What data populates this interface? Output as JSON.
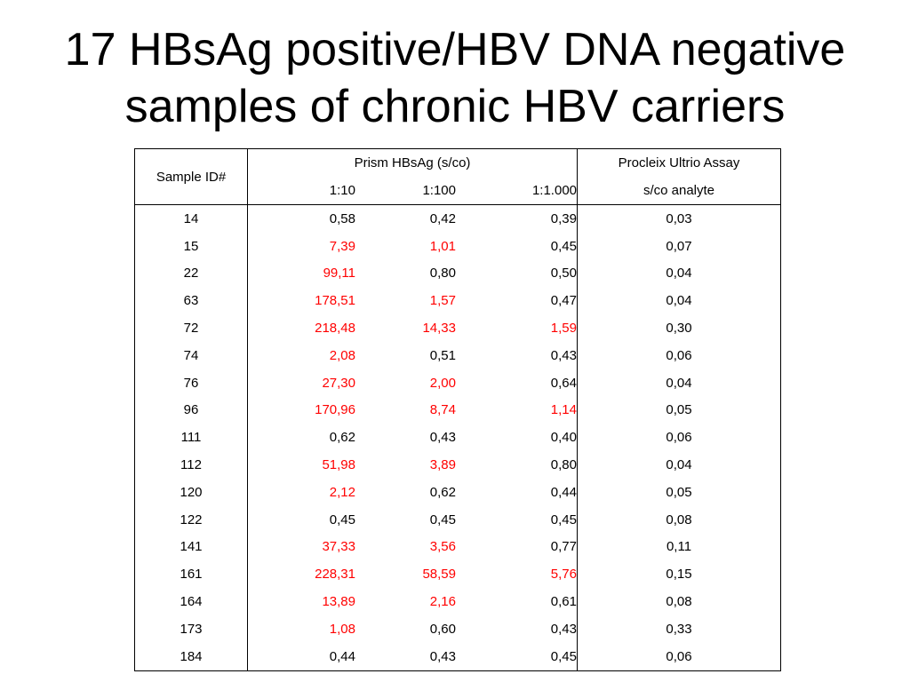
{
  "title": {
    "line1": "17 HBsAg positive/HBV DNA negative",
    "line2": "samples of chronic HBV carriers"
  },
  "table": {
    "header": {
      "sample_id": "Sample ID#",
      "prism": "Prism HBsAg (s/co)",
      "procleix": "Procleix Ultrio Assay",
      "dil1": "1:10",
      "dil2": "1:100",
      "dil3": "1:1.000",
      "analyte": "s/co analyte"
    },
    "highlight_color": "#ff0000",
    "rows": [
      {
        "id": "14",
        "d10": "0,58",
        "d100": "0,42",
        "d1000": "0,39",
        "ultrio": "0,03",
        "red": [
          false,
          false,
          false
        ]
      },
      {
        "id": "15",
        "d10": "7,39",
        "d100": "1,01",
        "d1000": "0,45",
        "ultrio": "0,07",
        "red": [
          true,
          true,
          false
        ]
      },
      {
        "id": "22",
        "d10": "99,11",
        "d100": "0,80",
        "d1000": "0,50",
        "ultrio": "0,04",
        "red": [
          true,
          false,
          false
        ]
      },
      {
        "id": "63",
        "d10": "178,51",
        "d100": "1,57",
        "d1000": "0,47",
        "ultrio": "0,04",
        "red": [
          true,
          true,
          false
        ]
      },
      {
        "id": "72",
        "d10": "218,48",
        "d100": "14,33",
        "d1000": "1,59",
        "ultrio": "0,30",
        "red": [
          true,
          true,
          true
        ]
      },
      {
        "id": "74",
        "d10": "2,08",
        "d100": "0,51",
        "d1000": "0,43",
        "ultrio": "0,06",
        "red": [
          true,
          false,
          false
        ]
      },
      {
        "id": "76",
        "d10": "27,30",
        "d100": "2,00",
        "d1000": "0,64",
        "ultrio": "0,04",
        "red": [
          true,
          true,
          false
        ]
      },
      {
        "id": "96",
        "d10": "170,96",
        "d100": "8,74",
        "d1000": "1,14",
        "ultrio": "0,05",
        "red": [
          true,
          true,
          true
        ]
      },
      {
        "id": "111",
        "d10": "0,62",
        "d100": "0,43",
        "d1000": "0,40",
        "ultrio": "0,06",
        "red": [
          false,
          false,
          false
        ]
      },
      {
        "id": "112",
        "d10": "51,98",
        "d100": "3,89",
        "d1000": "0,80",
        "ultrio": "0,04",
        "red": [
          true,
          true,
          false
        ]
      },
      {
        "id": "120",
        "d10": "2,12",
        "d100": "0,62",
        "d1000": "0,44",
        "ultrio": "0,05",
        "red": [
          true,
          false,
          false
        ]
      },
      {
        "id": "122",
        "d10": "0,45",
        "d100": "0,45",
        "d1000": "0,45",
        "ultrio": "0,08",
        "red": [
          false,
          false,
          false
        ]
      },
      {
        "id": "141",
        "d10": "37,33",
        "d100": "3,56",
        "d1000": "0,77",
        "ultrio": "0,11",
        "red": [
          true,
          true,
          false
        ]
      },
      {
        "id": "161",
        "d10": "228,31",
        "d100": "58,59",
        "d1000": "5,76",
        "ultrio": "0,15",
        "red": [
          true,
          true,
          true
        ]
      },
      {
        "id": "164",
        "d10": "13,89",
        "d100": "2,16",
        "d1000": "0,61",
        "ultrio": "0,08",
        "red": [
          true,
          true,
          false
        ]
      },
      {
        "id": "173",
        "d10": "1,08",
        "d100": "0,60",
        "d1000": "0,43",
        "ultrio": "0,33",
        "red": [
          true,
          false,
          false
        ]
      },
      {
        "id": "184",
        "d10": "0,44",
        "d100": "0,43",
        "d1000": "0,45",
        "ultrio": "0,06",
        "red": [
          false,
          false,
          false
        ]
      }
    ]
  }
}
